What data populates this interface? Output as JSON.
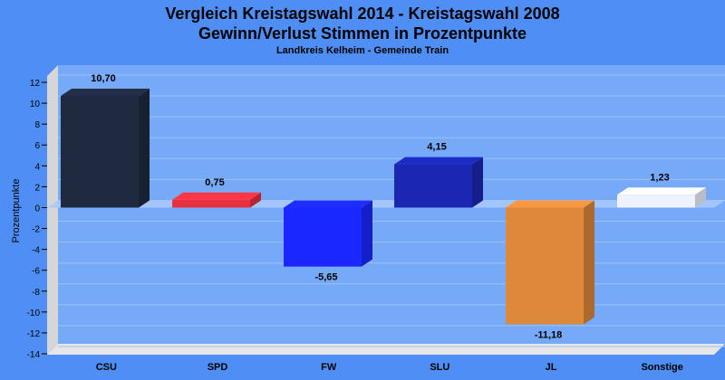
{
  "chart_data": {
    "type": "bar",
    "title": "Vergleich Kreistagswahl 2014 - Kreistagswahl 2008",
    "subtitle": "Gewinn/Verlust Stimmen in Prozentpunkte",
    "subtitle2": "Landkreis Kelheim - Gemeinde Train",
    "ylabel": "Prozentpunkte",
    "xlabel": "",
    "categories": [
      "CSU",
      "SPD",
      "FW",
      "SLU",
      "JL",
      "Sonstige"
    ],
    "values": [
      10.7,
      0.75,
      -5.65,
      4.15,
      -11.18,
      1.23
    ],
    "value_labels": [
      "10,70",
      "0,75",
      "-5,65",
      "4,15",
      "-11,18",
      "1,23"
    ],
    "colors": [
      "#1f2a40",
      "#e8303e",
      "#1a28ff",
      "#1b27b2",
      "#de883c",
      "#eef2ff"
    ],
    "ylim": [
      -14,
      12
    ],
    "yticks": [
      12,
      10,
      8,
      6,
      4,
      2,
      0,
      -2,
      -4,
      -6,
      -8,
      -10,
      -12,
      -14
    ],
    "grid": true
  }
}
